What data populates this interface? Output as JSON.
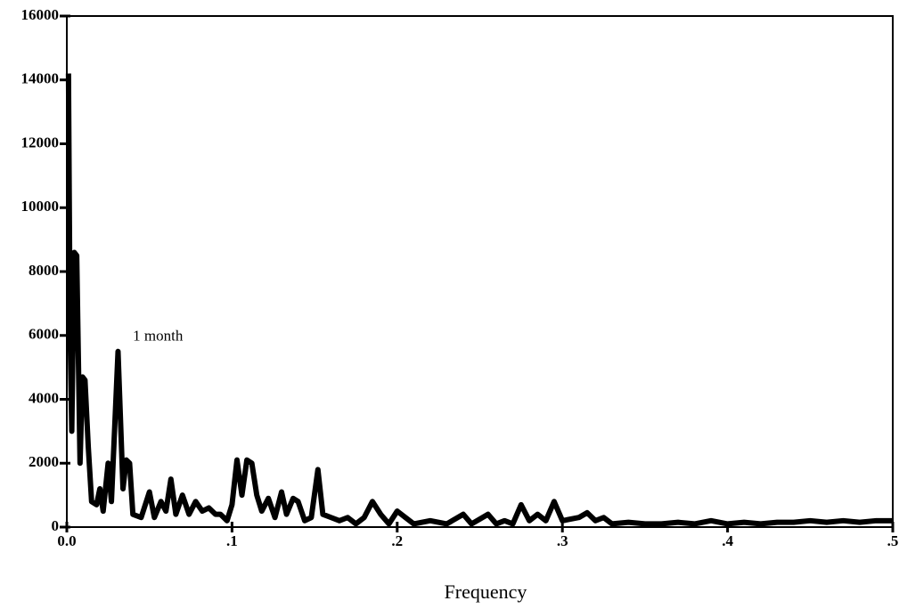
{
  "chart_data": {
    "type": "line",
    "xlabel": "Frequency",
    "annotation": {
      "text": "1 month",
      "x": 0.04,
      "y": 5950
    },
    "xlim": [
      0,
      0.5
    ],
    "ylim": [
      0,
      16000
    ],
    "xticks": [
      {
        "value": 0,
        "label": "0.0"
      },
      {
        "value": 0.1,
        "label": ".1"
      },
      {
        "value": 0.2,
        "label": ".2"
      },
      {
        "value": 0.3,
        "label": ".3"
      },
      {
        "value": 0.4,
        "label": ".4"
      },
      {
        "value": 0.5,
        "label": ".5"
      }
    ],
    "yticks": [
      0,
      2000,
      4000,
      6000,
      8000,
      10000,
      12000,
      14000,
      16000
    ],
    "x": [
      0.001,
      0.002,
      0.003,
      0.0045,
      0.006,
      0.008,
      0.0095,
      0.011,
      0.013,
      0.015,
      0.018,
      0.02,
      0.022,
      0.025,
      0.027,
      0.031,
      0.034,
      0.036,
      0.038,
      0.04,
      0.045,
      0.05,
      0.053,
      0.057,
      0.06,
      0.063,
      0.066,
      0.07,
      0.074,
      0.078,
      0.082,
      0.086,
      0.09,
      0.093,
      0.097,
      0.1,
      0.103,
      0.106,
      0.109,
      0.112,
      0.115,
      0.118,
      0.122,
      0.126,
      0.13,
      0.133,
      0.137,
      0.14,
      0.144,
      0.148,
      0.152,
      0.155,
      0.16,
      0.165,
      0.17,
      0.175,
      0.18,
      0.185,
      0.19,
      0.195,
      0.2,
      0.205,
      0.21,
      0.22,
      0.23,
      0.24,
      0.245,
      0.255,
      0.26,
      0.265,
      0.27,
      0.275,
      0.28,
      0.285,
      0.29,
      0.295,
      0.3,
      0.31,
      0.315,
      0.32,
      0.325,
      0.33,
      0.34,
      0.35,
      0.36,
      0.37,
      0.38,
      0.39,
      0.4,
      0.41,
      0.42,
      0.43,
      0.44,
      0.45,
      0.46,
      0.47,
      0.48,
      0.49,
      0.5
    ],
    "series": [
      {
        "color": "#000000",
        "values": [
          14200,
          6000,
          3000,
          8600,
          8500,
          2000,
          4700,
          4600,
          2500,
          800,
          700,
          1200,
          500,
          2000,
          800,
          5500,
          1200,
          2100,
          2000,
          400,
          300,
          1100,
          300,
          800,
          500,
          1500,
          400,
          1000,
          400,
          800,
          500,
          600,
          400,
          400,
          200,
          700,
          2100,
          1000,
          2100,
          2000,
          1000,
          500,
          900,
          300,
          1100,
          400,
          900,
          800,
          200,
          300,
          1800,
          400,
          300,
          200,
          300,
          100,
          300,
          800,
          400,
          100,
          500,
          300,
          100,
          200,
          100,
          400,
          100,
          400,
          100,
          200,
          100,
          700,
          200,
          400,
          200,
          800,
          200,
          300,
          450,
          200,
          300,
          100,
          150,
          100,
          100,
          150,
          100,
          200,
          100,
          150,
          100,
          150,
          150,
          200,
          150,
          200,
          150,
          200,
          200
        ]
      }
    ]
  }
}
